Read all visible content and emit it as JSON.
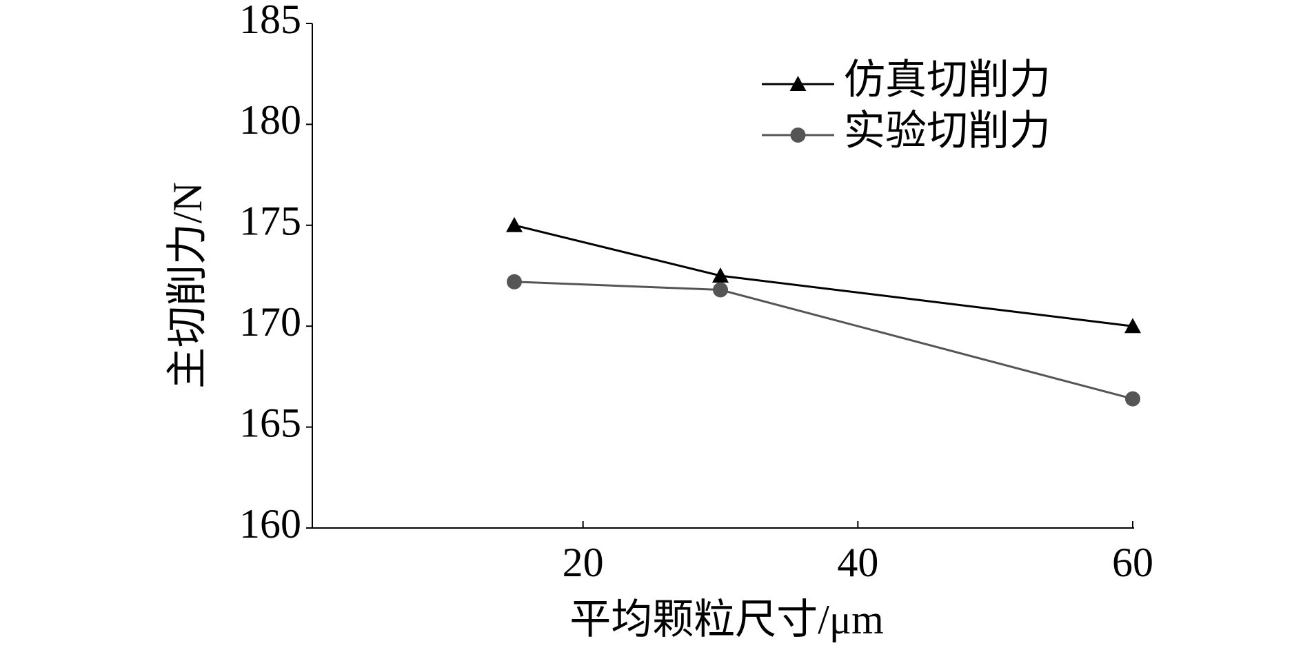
{
  "chart_data": {
    "type": "line",
    "x_label": "平均颗粒尺寸/μm",
    "y_label": "主切削力/N",
    "x": [
      15,
      30,
      60
    ],
    "series": [
      {
        "name": "仿真切削力",
        "color": "#000000",
        "marker": "triangle",
        "values": [
          175,
          172.5,
          170
        ]
      },
      {
        "name": "实验切削力",
        "color": "#555555",
        "marker": "circle",
        "values": [
          172.2,
          171.8,
          166.4
        ]
      }
    ],
    "xlim": [
      0,
      60
    ],
    "xticks": [
      20,
      40,
      60
    ],
    "ylim": [
      160,
      185
    ],
    "yticks": [
      160,
      165,
      170,
      175,
      180,
      185
    ],
    "grid": false,
    "legend": "upper right"
  }
}
